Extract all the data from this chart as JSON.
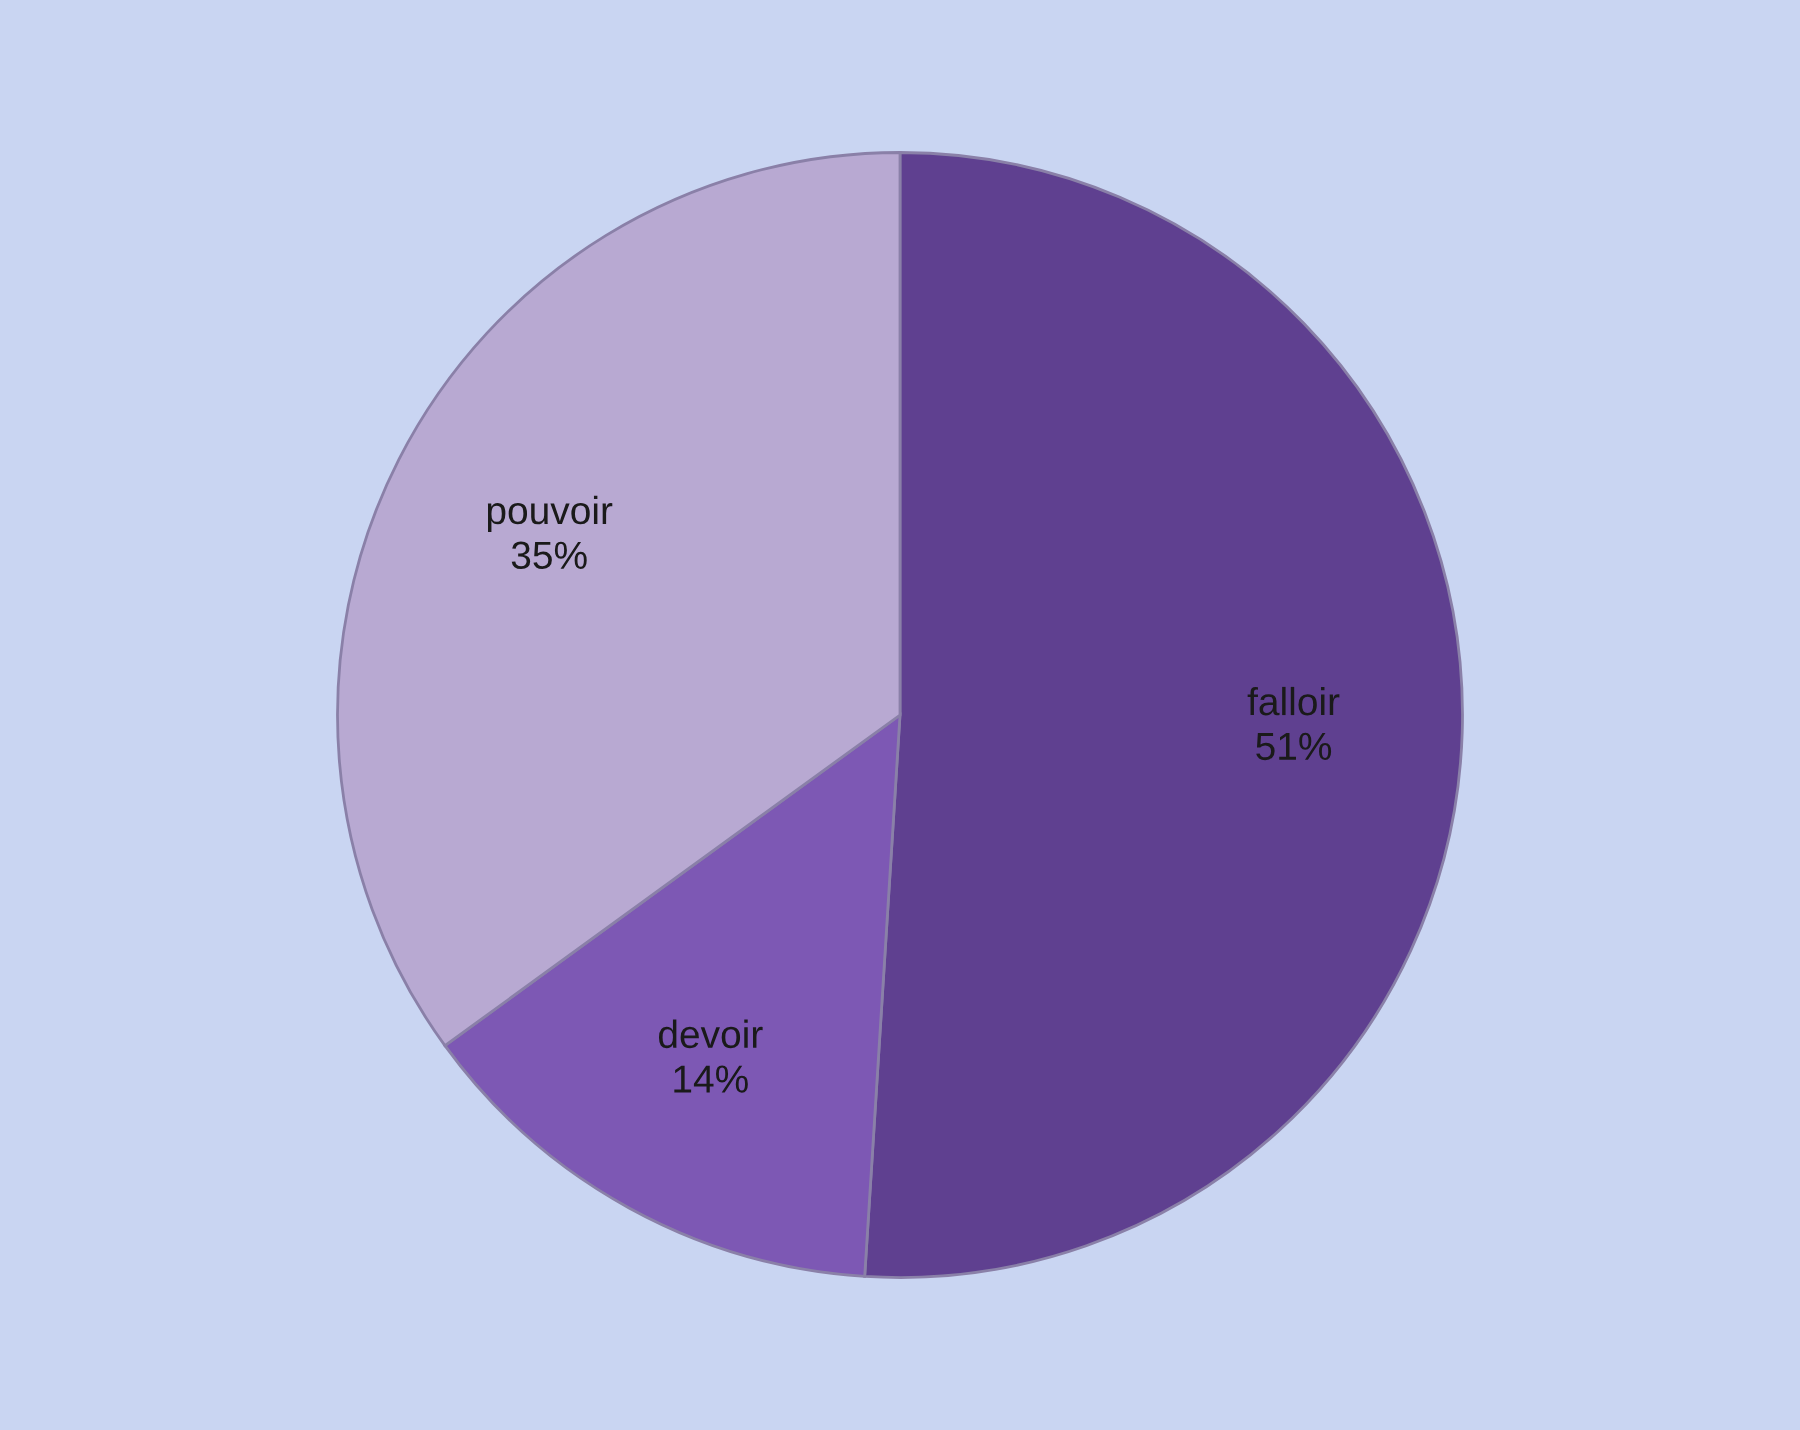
{
  "chart_data": {
    "type": "pie",
    "categories": [
      "falloir",
      "devoir",
      "pouvoir"
    ],
    "values": [
      51,
      14,
      35
    ],
    "value_labels": [
      "51%",
      "14%",
      "35%"
    ],
    "colors": [
      "#5f4090",
      "#7d58b4",
      "#b8a9d2"
    ],
    "legend": false
  }
}
